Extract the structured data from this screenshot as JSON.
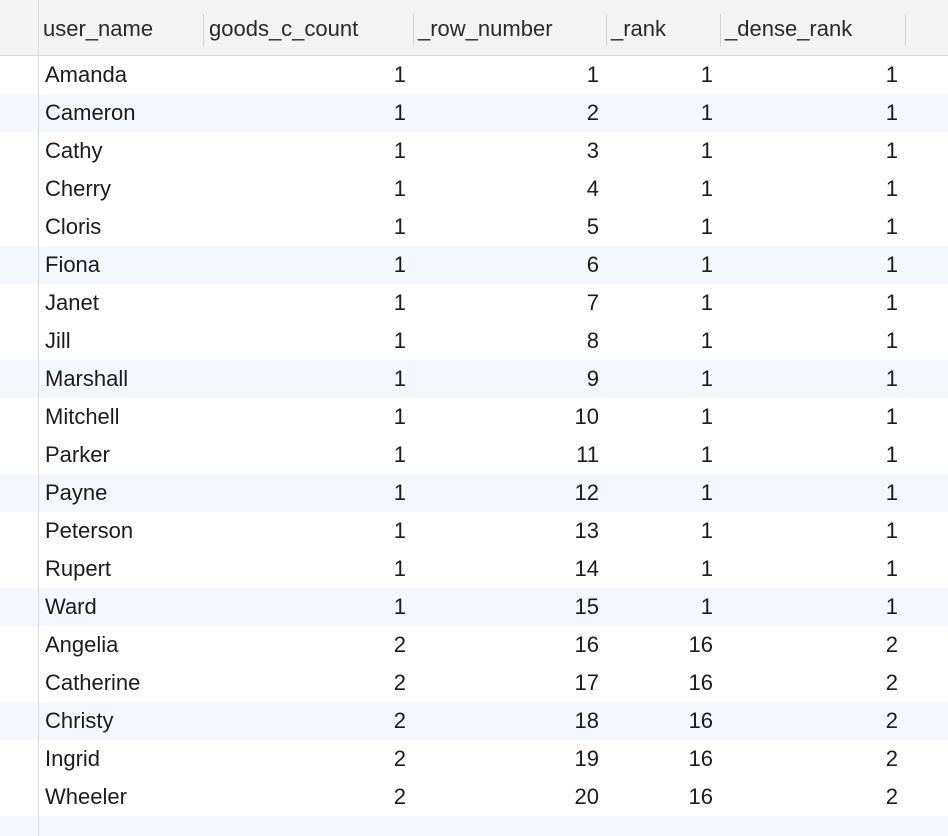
{
  "columns": [
    "user_name",
    "goods_c_count",
    "_row_number",
    "_rank",
    "_dense_rank"
  ],
  "rows": [
    {
      "user_name": "Amanda",
      "goods_c_count": "1",
      "_row_number": "1",
      "_rank": "1",
      "_dense_rank": "1"
    },
    {
      "user_name": "Cameron",
      "goods_c_count": "1",
      "_row_number": "2",
      "_rank": "1",
      "_dense_rank": "1"
    },
    {
      "user_name": "Cathy",
      "goods_c_count": "1",
      "_row_number": "3",
      "_rank": "1",
      "_dense_rank": "1"
    },
    {
      "user_name": "Cherry",
      "goods_c_count": "1",
      "_row_number": "4",
      "_rank": "1",
      "_dense_rank": "1"
    },
    {
      "user_name": "Cloris",
      "goods_c_count": "1",
      "_row_number": "5",
      "_rank": "1",
      "_dense_rank": "1"
    },
    {
      "user_name": "Fiona",
      "goods_c_count": "1",
      "_row_number": "6",
      "_rank": "1",
      "_dense_rank": "1"
    },
    {
      "user_name": "Janet",
      "goods_c_count": "1",
      "_row_number": "7",
      "_rank": "1",
      "_dense_rank": "1"
    },
    {
      "user_name": "Jill",
      "goods_c_count": "1",
      "_row_number": "8",
      "_rank": "1",
      "_dense_rank": "1"
    },
    {
      "user_name": "Marshall",
      "goods_c_count": "1",
      "_row_number": "9",
      "_rank": "1",
      "_dense_rank": "1"
    },
    {
      "user_name": "Mitchell",
      "goods_c_count": "1",
      "_row_number": "10",
      "_rank": "1",
      "_dense_rank": "1"
    },
    {
      "user_name": "Parker",
      "goods_c_count": "1",
      "_row_number": "11",
      "_rank": "1",
      "_dense_rank": "1"
    },
    {
      "user_name": "Payne",
      "goods_c_count": "1",
      "_row_number": "12",
      "_rank": "1",
      "_dense_rank": "1"
    },
    {
      "user_name": "Peterson",
      "goods_c_count": "1",
      "_row_number": "13",
      "_rank": "1",
      "_dense_rank": "1"
    },
    {
      "user_name": "Rupert",
      "goods_c_count": "1",
      "_row_number": "14",
      "_rank": "1",
      "_dense_rank": "1"
    },
    {
      "user_name": "Ward",
      "goods_c_count": "1",
      "_row_number": "15",
      "_rank": "1",
      "_dense_rank": "1"
    },
    {
      "user_name": "Angelia",
      "goods_c_count": "2",
      "_row_number": "16",
      "_rank": "16",
      "_dense_rank": "2"
    },
    {
      "user_name": "Catherine",
      "goods_c_count": "2",
      "_row_number": "17",
      "_rank": "16",
      "_dense_rank": "2"
    },
    {
      "user_name": "Christy",
      "goods_c_count": "2",
      "_row_number": "18",
      "_rank": "16",
      "_dense_rank": "2"
    },
    {
      "user_name": "Ingrid",
      "goods_c_count": "2",
      "_row_number": "19",
      "_rank": "16",
      "_dense_rank": "2"
    },
    {
      "user_name": "Wheeler",
      "goods_c_count": "2",
      "_row_number": "20",
      "_rank": "16",
      "_dense_rank": "2"
    }
  ],
  "colors": {
    "header_bg": "#f3f3f3",
    "alt_row_bg": "#f4f7fb",
    "text": "#1c1c1c"
  }
}
